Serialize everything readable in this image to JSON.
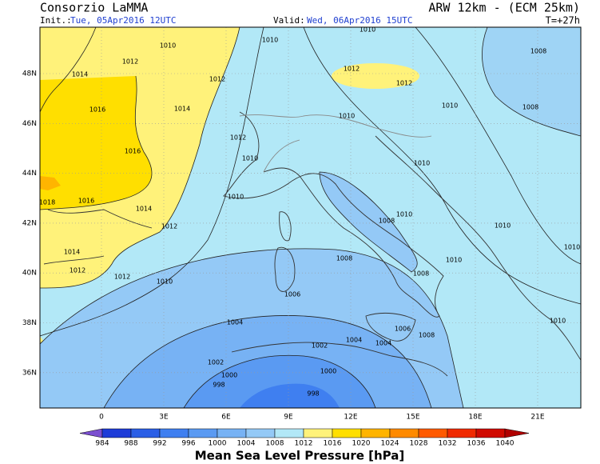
{
  "header": {
    "title": "Consorzio LaMMA",
    "model": "ARW 12km - (ECM 25km)",
    "init_label": "Init.:",
    "init_time": "Tue, 05Apr2016 12UTC",
    "valid_label": "Valid:",
    "valid_time": "Wed, 06Apr2016 15UTC",
    "lead": "T=+27h"
  },
  "map": {
    "lat_labels": [
      "48N",
      "46N",
      "44N",
      "42N",
      "40N",
      "38N",
      "36N"
    ],
    "lon_labels": [
      "0",
      "3E",
      "6E",
      "9E",
      "12E",
      "15E",
      "18E",
      "21E"
    ],
    "isobar_labels": [
      "1010",
      "1010",
      "1012",
      "1014",
      "1012",
      "1014",
      "1016",
      "1016",
      "1012",
      "1010",
      "1010",
      "1016",
      "1018",
      "1014",
      "1012",
      "1014",
      "1012",
      "1012",
      "1010",
      "1012",
      "1012",
      "1010",
      "1008",
      "1008",
      "1010",
      "1010",
      "1010",
      "1008",
      "1010",
      "1010",
      "1010",
      "1008",
      "1008",
      "1006",
      "1004",
      "1006",
      "1008",
      "1004",
      "1004",
      "1002",
      "1002",
      "1000",
      "998",
      "1000",
      "998",
      "1010",
      "1010"
    ]
  },
  "colorbar": {
    "levels": [
      984,
      988,
      992,
      996,
      1000,
      1004,
      1008,
      1012,
      1016,
      1020,
      1024,
      1028,
      1032,
      1036,
      1040
    ],
    "colors": [
      "#7b4fd0",
      "#1e3cd8",
      "#2a5ee6",
      "#3f7ff0",
      "#5a9af2",
      "#77b2f4",
      "#94c9f6",
      "#b2e8f7",
      "#fff27a",
      "#ffdf00",
      "#ffb400",
      "#ff8a00",
      "#ff5a00",
      "#f02a00",
      "#d00a00",
      "#b00000"
    ],
    "title": "Mean Sea Level Pressure [hPa]"
  }
}
